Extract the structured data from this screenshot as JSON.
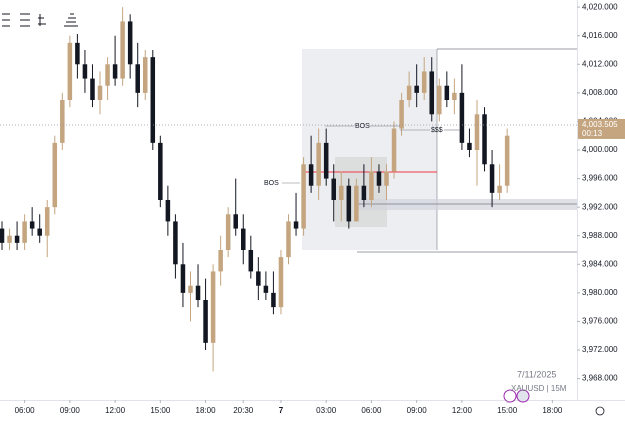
{
  "chart_data": {
    "type": "candlestick",
    "symbol": "XAUUSD | 15M",
    "date": "7/11/2025",
    "up_color": "#c4a57f",
    "down_color": "#131722",
    "open": [
      3989,
      3987,
      3988,
      3987,
      3990,
      3989,
      3988,
      3992,
      4001,
      4007,
      4015,
      4012,
      4010,
      4007,
      4009,
      4012,
      4010,
      4018,
      4012,
      4008,
      4013,
      4001,
      3993,
      3990,
      3984,
      3980,
      3981,
      3979,
      3973,
      3983,
      3986,
      3991,
      3989,
      3986,
      3983,
      3981,
      3980,
      3978,
      3985,
      3990,
      3989,
      3998,
      3995,
      4001,
      3996,
      3993,
      3995,
      3990,
      3995,
      3993,
      3997,
      3995,
      3997,
      4003,
      4007,
      4009,
      4008,
      4011,
      4005,
      4009,
      4007,
      4008,
      4001,
      4000,
      4005,
      3998,
      3994,
      3995
    ],
    "high": [
      3990,
      3989,
      3990,
      3991,
      3992,
      3991,
      3993,
      4002,
      4008,
      4016,
      4018,
      4014,
      4012,
      4011,
      4013,
      4016,
      4020,
      4019,
      4015,
      4014,
      4014,
      4002,
      3995,
      3991,
      3987,
      3983,
      3984,
      3982,
      3984,
      3988,
      3992,
      3996,
      3991,
      3988,
      3985,
      3983,
      3983,
      3986,
      3991,
      3994,
      3999,
      4002,
      4003,
      4003,
      3998,
      3997,
      3996,
      3996,
      3998,
      3999,
      3998,
      3998,
      4004,
      4008,
      4011,
      4012,
      4013,
      4013,
      4010,
      4011,
      4010,
      4012,
      4003,
      4007,
      4006,
      4000,
      3998,
      4003
    ],
    "low": [
      3986,
      3986,
      3986,
      3986,
      3988,
      3987,
      3985,
      3991,
      4000,
      4006,
      4010,
      4008,
      4006,
      4005,
      4007,
      4009,
      4009,
      4010,
      4006,
      4007,
      4000,
      3992,
      3988,
      3982,
      3978,
      3976,
      3978,
      3972,
      3969,
      3981,
      3985,
      3988,
      3984,
      3982,
      3979,
      3979,
      3977,
      3977,
      3984,
      3988,
      3988,
      3994,
      3993,
      3995,
      3990,
      3990,
      3989,
      3990,
      3992,
      3992,
      3994,
      3993,
      3996,
      4002,
      4006,
      4006,
      4007,
      4004,
      4004,
      4006,
      4005,
      4000,
      3999,
      3995,
      3997,
      3992,
      3993,
      3994
    ],
    "close": [
      3987,
      3988,
      3987,
      3990,
      3989,
      3988,
      3992,
      4001,
      4007,
      4015,
      4012,
      4010,
      4007,
      4009,
      4012,
      4010,
      4018,
      4012,
      4008,
      4013,
      4001,
      3993,
      3990,
      3984,
      3980,
      3981,
      3979,
      3973,
      3983,
      3986,
      3991,
      3989,
      3986,
      3983,
      3981,
      3980,
      3978,
      3985,
      3990,
      3989,
      3998,
      3995,
      4001,
      3996,
      3993,
      3995,
      3990,
      3995,
      3993,
      3997,
      3995,
      3997,
      4003,
      4007,
      4009,
      4008,
      4011,
      4005,
      4009,
      4007,
      4008,
      4001,
      4000,
      4005,
      3998,
      3994,
      3995,
      4002
    ],
    "last_price": {
      "value": 4003.505,
      "label": "4,003.505"
    },
    "countdown": "00:13",
    "xlim": [
      0,
      76
    ],
    "xticks": [
      {
        "value": 3,
        "label": "06:00"
      },
      {
        "value": 9,
        "label": "09:00"
      },
      {
        "value": 15,
        "label": "12:00"
      },
      {
        "value": 21,
        "label": "15:00"
      },
      {
        "value": 27,
        "label": "18:00"
      },
      {
        "value": 32,
        "label": "20:30"
      },
      {
        "value": 37,
        "label": "7"
      },
      {
        "value": 43,
        "label": "03:00"
      },
      {
        "value": 49,
        "label": "06:00"
      },
      {
        "value": 55,
        "label": "09:00"
      },
      {
        "value": 61,
        "label": "12:00"
      },
      {
        "value": 67,
        "label": "15:00"
      },
      {
        "value": 73,
        "label": "18:00"
      }
    ],
    "ylim": [
      3965,
      4021
    ],
    "yticks": [
      {
        "value": 3968,
        "label": "3,968.000"
      },
      {
        "value": 3972,
        "label": "3,972.000"
      },
      {
        "value": 3976,
        "label": "3,976.000"
      },
      {
        "value": 3980,
        "label": "3,980.000"
      },
      {
        "value": 3984,
        "label": "3,984.000"
      },
      {
        "value": 3988,
        "label": "3,988.000"
      },
      {
        "value": 3992,
        "label": "3,992.000"
      },
      {
        "value": 3996,
        "label": "3,996.000"
      },
      {
        "value": 4000,
        "label": "4,000.000"
      },
      {
        "value": 4004,
        "label": "4,004.000"
      },
      {
        "value": 4008,
        "label": "4,008.000"
      },
      {
        "value": 4012,
        "label": "4,012.000"
      },
      {
        "value": 4016,
        "label": "4,016.000"
      },
      {
        "value": 4020,
        "label": "4,020.000"
      }
    ],
    "annotations": [
      "BOS",
      "BOS",
      "$$$"
    ]
  }
}
